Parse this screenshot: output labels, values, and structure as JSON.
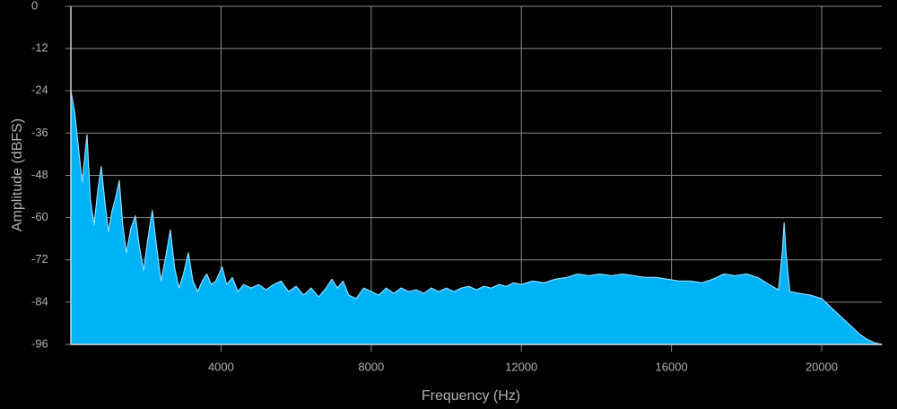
{
  "chart_data": {
    "type": "area",
    "x_label": "Frequency (Hz)",
    "y_label": "Amplitude (dBFS)",
    "x": [
      0,
      100,
      200,
      300,
      430,
      520,
      620,
      720,
      810,
      900,
      1000,
      1100,
      1200,
      1290,
      1380,
      1480,
      1600,
      1720,
      1820,
      1940,
      2050,
      2170,
      2280,
      2400,
      2530,
      2650,
      2760,
      2880,
      3000,
      3130,
      3250,
      3380,
      3500,
      3620,
      3740,
      3860,
      4030,
      4150,
      4300,
      4450,
      4600,
      4800,
      5000,
      5200,
      5400,
      5600,
      5800,
      6000,
      6200,
      6400,
      6600,
      6800,
      6950,
      7100,
      7250,
      7400,
      7600,
      7800,
      8000,
      8200,
      8400,
      8600,
      8800,
      9000,
      9200,
      9400,
      9600,
      9800,
      10000,
      10200,
      10400,
      10600,
      10800,
      11000,
      11200,
      11400,
      11600,
      11800,
      12000,
      12300,
      12600,
      12900,
      13200,
      13500,
      13800,
      14100,
      14400,
      14700,
      15000,
      15300,
      15600,
      15900,
      16200,
      16500,
      16800,
      17100,
      17400,
      17700,
      18000,
      18300,
      18600,
      18850,
      18950,
      19000,
      19050,
      19150,
      19400,
      19700,
      20000,
      20200,
      20400,
      20600,
      20800,
      21000,
      21200,
      21400,
      21600
    ],
    "values": [
      -24,
      -30,
      -40,
      -50,
      -36.5,
      -55,
      -62,
      -52,
      -45.5,
      -55,
      -64,
      -58,
      -54,
      -49.5,
      -62,
      -70,
      -63,
      -59.5,
      -68,
      -75,
      -66,
      -58,
      -68,
      -78,
      -71,
      -63.5,
      -74,
      -80,
      -76,
      -70,
      -78,
      -81,
      -78,
      -76,
      -79,
      -78,
      -74,
      -79,
      -77,
      -81,
      -79,
      -80,
      -79,
      -80.5,
      -79,
      -78,
      -81,
      -79.5,
      -82,
      -80,
      -82.5,
      -80,
      -77.5,
      -80,
      -78,
      -82,
      -83,
      -80,
      -81,
      -82,
      -80,
      -81.5,
      -80,
      -81,
      -80.5,
      -81.5,
      -80,
      -81,
      -80,
      -81,
      -80,
      -79.5,
      -80.5,
      -79.5,
      -80,
      -79,
      -79.5,
      -78.5,
      -79,
      -78,
      -78.5,
      -77.5,
      -77,
      -76,
      -76.5,
      -76,
      -76.5,
      -76,
      -76.5,
      -77,
      -77,
      -77.5,
      -78,
      -78,
      -78.5,
      -77.5,
      -76,
      -76.5,
      -76,
      -77,
      -79,
      -80.5,
      -70,
      -61.5,
      -70,
      -81,
      -81.5,
      -82,
      -83,
      -85,
      -87,
      -89,
      -91,
      -93,
      -94.5,
      -95.5,
      -96
    ],
    "color": "#00b2f6",
    "xlim": [
      0,
      21600
    ],
    "xticks": [
      4000,
      8000,
      12000,
      16000,
      20000
    ],
    "ylim": [
      -96,
      0
    ],
    "yticks": [
      0,
      -12,
      -24,
      -36,
      -48,
      -60,
      -72,
      -84,
      -96
    ],
    "grid": true
  }
}
